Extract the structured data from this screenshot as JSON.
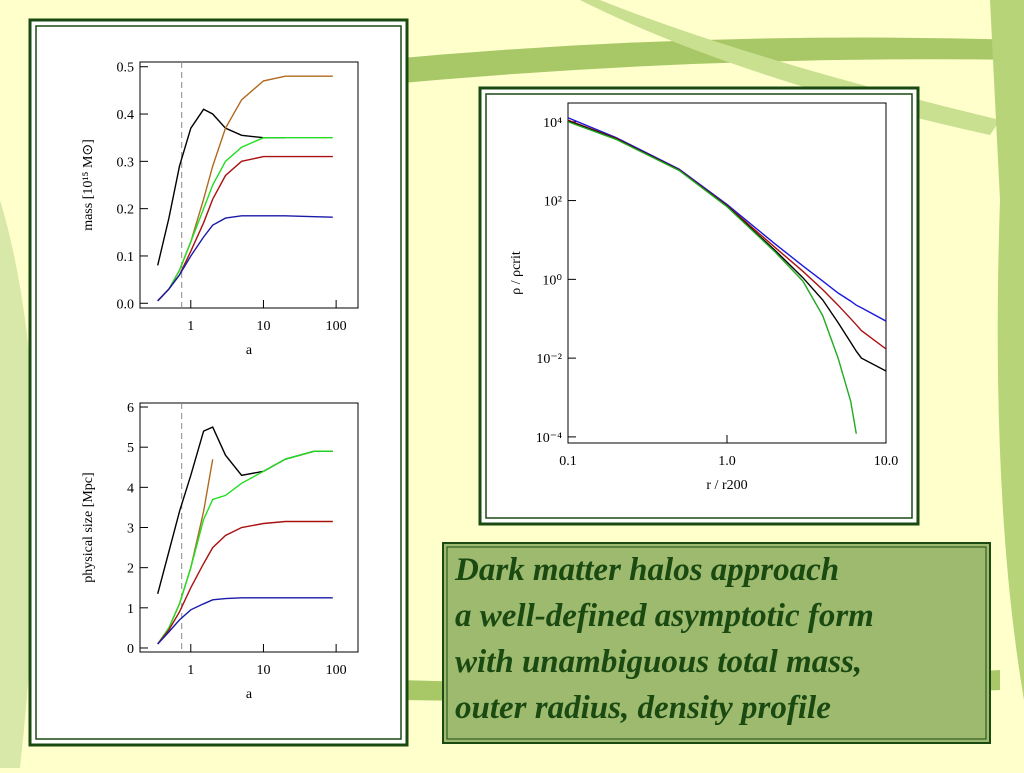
{
  "chart_data": [
    {
      "type": "line",
      "xlabel": "a",
      "ylabel": "mass [10¹⁵ M⊙]",
      "x": [
        0.35,
        0.5,
        0.7,
        1,
        1.5,
        2,
        3,
        5,
        10,
        20,
        50,
        90
      ],
      "xlim": [
        0.2,
        200
      ],
      "ylim": [
        -0.01,
        0.51
      ],
      "xlog": true,
      "ylog": false,
      "xticks": [
        1,
        10,
        100
      ],
      "yticks": [
        {
          "value": 0,
          "label": "0.0"
        },
        0.1,
        0.2,
        0.3,
        0.4,
        0.5
      ],
      "vline": 0.75,
      "series": [
        {
          "color": "#000000",
          "values": [
            0.08,
            0.18,
            0.29,
            0.37,
            0.41,
            0.4,
            0.37,
            0.355,
            0.35,
            0.35,
            null,
            null
          ]
        },
        {
          "color": "#b06a20",
          "values": [
            0.005,
            0.03,
            0.07,
            0.13,
            0.22,
            0.29,
            0.37,
            0.43,
            0.47,
            0.48,
            0.48,
            0.48
          ]
        },
        {
          "color": "#22dd22",
          "values": [
            0.005,
            0.03,
            0.07,
            0.13,
            0.2,
            0.25,
            0.3,
            0.33,
            0.35,
            0.35,
            0.35,
            0.35
          ]
        },
        {
          "color": "#aa1111",
          "values": [
            0.005,
            0.03,
            0.06,
            0.11,
            0.17,
            0.22,
            0.27,
            0.3,
            0.31,
            0.31,
            0.31,
            0.31
          ]
        },
        {
          "color": "#1a1aaa",
          "values": [
            0.005,
            0.03,
            0.06,
            0.1,
            0.14,
            0.165,
            0.18,
            0.185,
            0.185,
            0.185,
            0.183,
            0.182
          ]
        }
      ]
    },
    {
      "type": "line",
      "xlabel": "a",
      "ylabel": "physical size [Mpc]",
      "x": [
        0.35,
        0.5,
        0.7,
        1,
        1.5,
        2,
        3,
        5,
        10,
        20,
        50,
        90
      ],
      "xlim": [
        0.2,
        200
      ],
      "ylim": [
        -0.1,
        6.1
      ],
      "xlog": true,
      "ylog": false,
      "xticks": [
        1,
        10,
        100
      ],
      "yticks": [
        0,
        1,
        2,
        3,
        4,
        5,
        6
      ],
      "vline": 0.75,
      "series": [
        {
          "color": "#000000",
          "values": [
            1.35,
            2.4,
            3.4,
            4.3,
            5.4,
            5.5,
            4.8,
            4.3,
            4.4,
            4.7,
            4.9,
            4.9
          ]
        },
        {
          "color": "#b06a20",
          "values": [
            0.1,
            0.5,
            1.1,
            2.0,
            3.4,
            4.7,
            null,
            null,
            null,
            null,
            null,
            null
          ]
        },
        {
          "color": "#22dd22",
          "values": [
            0.1,
            0.5,
            1.1,
            2.0,
            3.2,
            3.7,
            3.8,
            4.1,
            4.4,
            4.7,
            4.9,
            4.9
          ]
        },
        {
          "color": "#aa1111",
          "values": [
            0.1,
            0.45,
            0.9,
            1.5,
            2.1,
            2.5,
            2.8,
            3.0,
            3.1,
            3.15,
            3.15,
            3.15
          ]
        },
        {
          "color": "#1a1aaa",
          "values": [
            0.1,
            0.4,
            0.7,
            0.95,
            1.1,
            1.2,
            1.23,
            1.25,
            1.25,
            1.25,
            1.25,
            1.25
          ]
        }
      ]
    },
    {
      "type": "line",
      "xlabel": "r / r200",
      "ylabel": "ρ / ρcrit",
      "x": [
        0.1,
        0.2,
        0.5,
        1,
        2,
        3,
        4,
        5,
        6,
        6.5,
        7,
        10
      ],
      "xlim": [
        0.1,
        10
      ],
      "ylim": [
        7e-05,
        30000
      ],
      "xlog": true,
      "ylog": true,
      "xticks": [
        0.1,
        {
          "value": 1,
          "label": "1.0"
        },
        {
          "value": 10,
          "label": "10.0"
        }
      ],
      "yticks": [
        {
          "value": 10000,
          "label": "10⁴"
        },
        {
          "value": 100,
          "label": "10²"
        },
        {
          "value": 1,
          "label": "10⁰"
        },
        {
          "value": 0.01,
          "label": "10⁻²"
        },
        {
          "value": 0.0001,
          "label": "10⁻⁴"
        }
      ],
      "series": [
        {
          "color": "#1a1add",
          "values": [
            12600,
            4000,
            630,
            80,
            8,
            2.2,
            0.9,
            0.45,
            0.28,
            0.22,
            0.19,
            0.087
          ]
        },
        {
          "color": "#aa1111",
          "values": [
            11000,
            3800,
            600,
            75,
            6.5,
            1.6,
            0.55,
            0.22,
            0.1,
            0.07,
            0.05,
            0.017
          ]
        },
        {
          "color": "#000000",
          "values": [
            10500,
            3700,
            590,
            72,
            5.5,
            1.1,
            0.3,
            0.08,
            0.025,
            0.015,
            0.01,
            0.0047
          ]
        },
        {
          "color": "#22aa22",
          "values": [
            10000,
            3600,
            580,
            70,
            5,
            0.9,
            0.12,
            0.01,
            0.0008,
            0.00012,
            null,
            null
          ]
        }
      ]
    }
  ],
  "text": {
    "lines": [
      "Dark matter halos approach",
      "a well-defined asymptotic form",
      "with unambiguous total mass,",
      "outer radius, density profile"
    ]
  }
}
